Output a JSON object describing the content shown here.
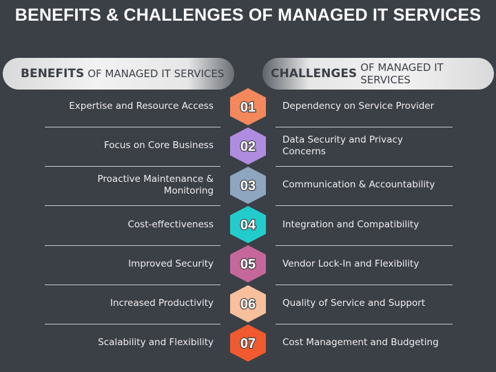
{
  "title": "BENEFITS & CHALLENGES OF MANAGED IT SERVICES",
  "headers": {
    "left": {
      "bold": "BENEFITS",
      "rest": "OF MANAGED IT SERVICES"
    },
    "right": {
      "bold": "CHALLENGES",
      "rest": "OF MANAGED IT SERVICES"
    }
  },
  "rows": [
    {
      "number": "01",
      "left": "Expertise and Resource Access",
      "right": "Dependency on Service Provider"
    },
    {
      "number": "02",
      "left": "Focus on Core Business",
      "right": "Data Security and Privacy Concerns"
    },
    {
      "number": "03",
      "left": "Proactive Maintenance & Monitoring",
      "right": "Communication & Accountability"
    },
    {
      "number": "04",
      "left": "Cost-effectiveness",
      "right": "Integration and Compatibility"
    },
    {
      "number": "05",
      "left": "Improved Security",
      "right": "Vendor Lock-In and Flexibility"
    },
    {
      "number": "06",
      "left": "Increased Productivity",
      "right": "Quality of Service and Support"
    },
    {
      "number": "07",
      "left": "Scalability and Flexibility",
      "right": "Cost Management and Budgeting"
    }
  ]
}
